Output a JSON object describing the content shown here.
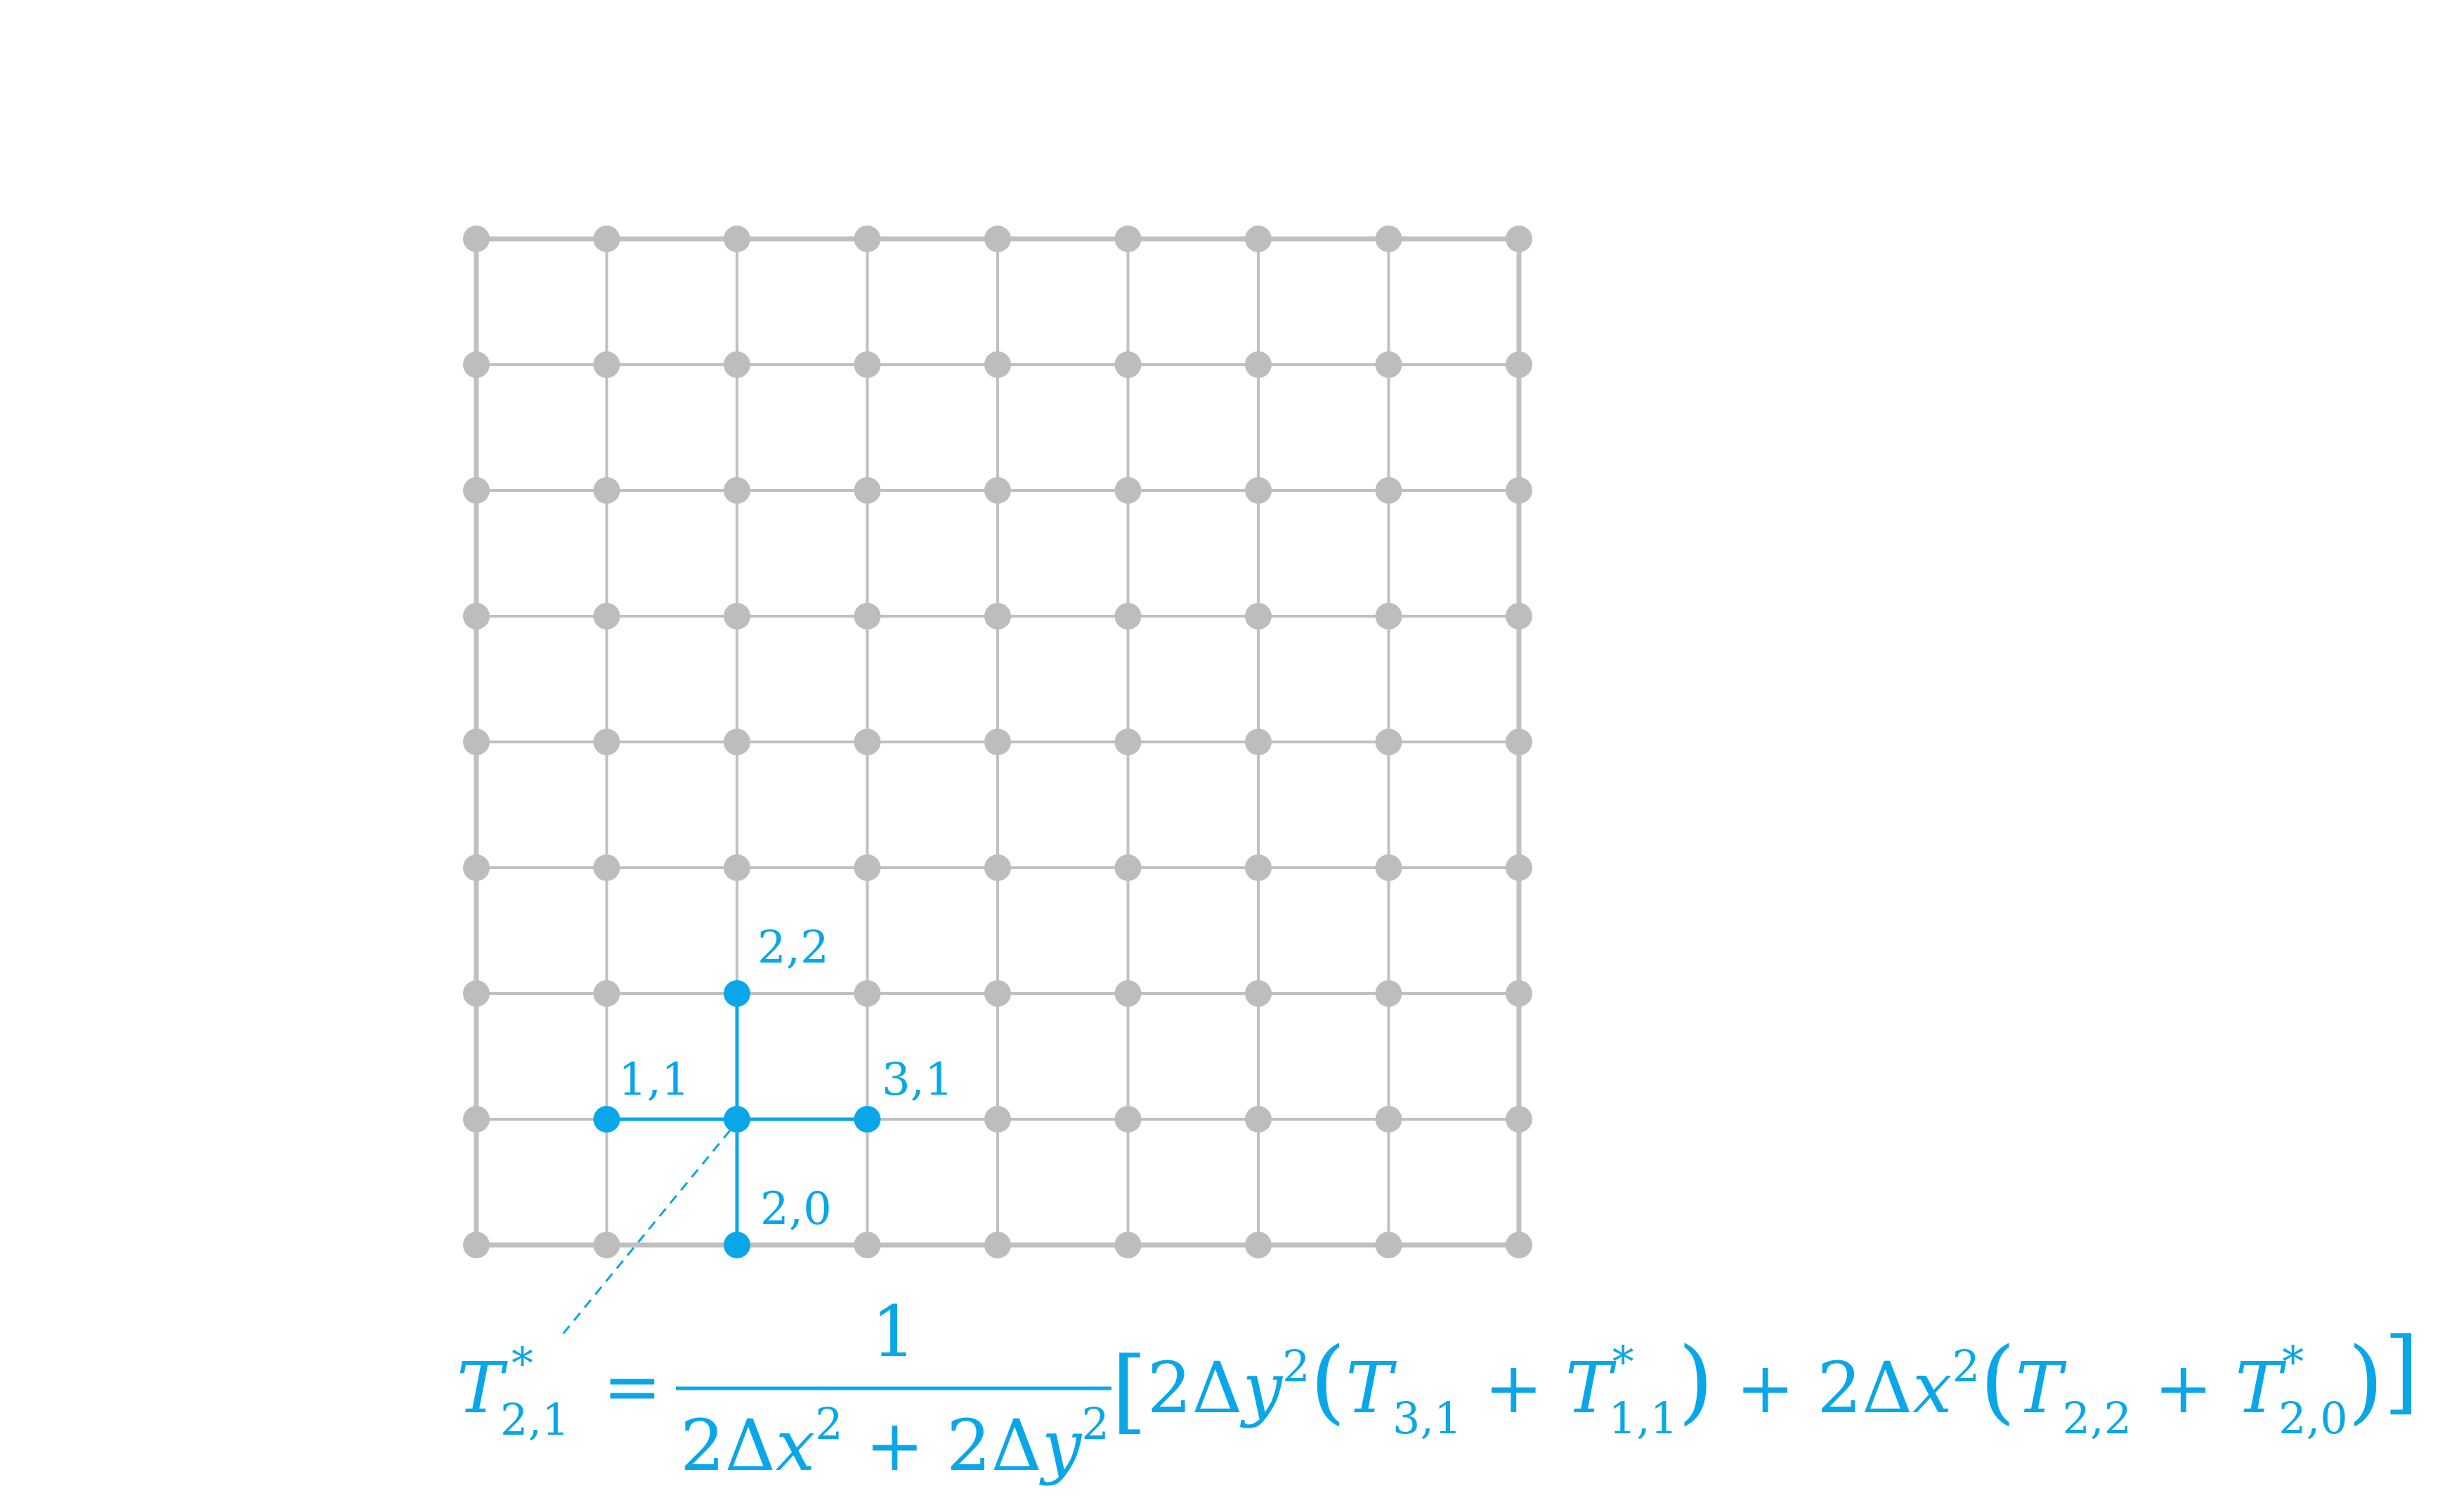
{
  "colors": {
    "grid_line": "#c0c0c0",
    "grid_node": "#bdbdbd",
    "highlight": "#0aa7e8",
    "background": "#ffffff"
  },
  "grid": {
    "columns": 9,
    "rows": 9,
    "stencil_center": [
      2,
      1
    ],
    "stencil_neighbors": [
      [
        1,
        1
      ],
      [
        3,
        1
      ],
      [
        2,
        2
      ],
      [
        2,
        0
      ]
    ]
  },
  "labels": {
    "n22": "2,2",
    "n11": "1,1",
    "n31": "3,1",
    "n20": "2,0"
  },
  "equation": {
    "lhs_symbol": "T",
    "lhs_star": "*",
    "lhs_sub": "2,1",
    "equals": "=",
    "numerator": "1",
    "den_a": "2Δ",
    "den_x": "x",
    "den_sq1": "2",
    "den_plus": " + 2Δ",
    "den_y": "y",
    "den_sq2": "2",
    "lbracket": "[",
    "t1_coef": "2Δ",
    "t1_var": "y",
    "t1_sq": "2",
    "lparen1": "(",
    "T31": "T",
    "T31_sub": "3,1",
    "plus1": " + ",
    "T11": "T",
    "T11_star": "*",
    "T11_sub": "1,1",
    "rparen1": ")",
    "plus_mid": " + 2Δ",
    "t2_var": "x",
    "t2_sq": "2",
    "lparen2": "(",
    "T22": "T",
    "T22_sub": "2,2",
    "plus2": " + ",
    "T20": "T",
    "T20_star": "*",
    "T20_sub": "2,0",
    "rparen2": ")",
    "rbracket": "]"
  }
}
